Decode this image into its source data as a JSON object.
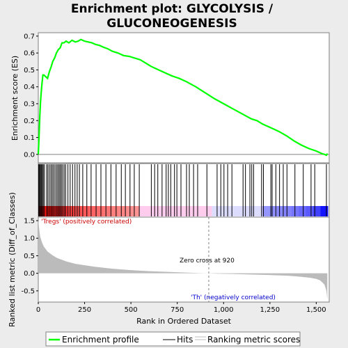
{
  "chart_data": {
    "type": "line",
    "title_line1": "Enrichment plot: GLYCOLYSIS /",
    "title_line2": "GLUCONEOGENESIS",
    "es_ylabel": "Enrichment score (ES)",
    "metric_ylabel": "Ranked list metric (Diff_of_Classes)",
    "xlabel": "Rank in Ordered Dataset",
    "es_yticks": [
      "0.0",
      "0.1",
      "0.2",
      "0.3",
      "0.4",
      "0.5",
      "0.6",
      "0.7"
    ],
    "metric_yticks": [
      "-0.5",
      "0.0",
      "0.5",
      "1.0",
      "1.5"
    ],
    "xticks": [
      "0",
      "250",
      "500",
      "750",
      "1,000",
      "1,250",
      "1,500"
    ],
    "xlim": [
      0,
      1570
    ],
    "es_ylim": [
      -0.05,
      0.72
    ],
    "metric_ylim": [
      -0.82,
      1.6
    ],
    "positive_label": "'Tregs' (positively correlated)",
    "negative_label": "'Th' (negatively correlated)",
    "zero_cross_label": "Zero cross at 920",
    "zero_cross": 920,
    "es_line_color": "#00ff00",
    "hit_color": "#000000",
    "metric_color": "#bbbbbb",
    "series": [
      {
        "name": "Enrichment profile",
        "x": [
          0,
          4,
          8,
          12,
          16,
          20,
          25,
          30,
          40,
          50,
          60,
          70,
          78,
          88,
          98,
          108,
          118,
          128,
          138,
          150,
          165,
          182,
          200,
          215,
          230,
          250,
          270,
          290,
          310,
          330,
          350,
          375,
          400,
          430,
          460,
          490,
          520,
          550,
          580,
          610,
          640,
          680,
          720,
          760,
          800,
          850,
          900,
          950,
          1000,
          1050,
          1100,
          1150,
          1180,
          1210,
          1240,
          1270,
          1300,
          1340,
          1380,
          1420,
          1460,
          1500,
          1530,
          1545,
          1555,
          1560
        ],
        "y": [
          0.0,
          0.1,
          0.22,
          0.31,
          0.37,
          0.42,
          0.47,
          0.47,
          0.46,
          0.45,
          0.49,
          0.52,
          0.55,
          0.57,
          0.6,
          0.62,
          0.63,
          0.66,
          0.66,
          0.67,
          0.66,
          0.675,
          0.665,
          0.67,
          0.68,
          0.67,
          0.665,
          0.66,
          0.65,
          0.645,
          0.635,
          0.625,
          0.61,
          0.6,
          0.585,
          0.58,
          0.57,
          0.56,
          0.54,
          0.52,
          0.505,
          0.485,
          0.465,
          0.45,
          0.43,
          0.4,
          0.365,
          0.33,
          0.3,
          0.27,
          0.24,
          0.21,
          0.2,
          0.18,
          0.165,
          0.15,
          0.135,
          0.11,
          0.08,
          0.055,
          0.035,
          0.02,
          0.005,
          0.0,
          -0.005,
          0.005
        ]
      }
    ],
    "hits": [
      2,
      5,
      9,
      14,
      18,
      22,
      27,
      33,
      45,
      52,
      60,
      68,
      75,
      82,
      90,
      98,
      105,
      112,
      118,
      125,
      132,
      140,
      148,
      160,
      172,
      185,
      198,
      210,
      222,
      240,
      262,
      285,
      312,
      338,
      365,
      392,
      420,
      448,
      470,
      495,
      518,
      545,
      610,
      628,
      645,
      668,
      690,
      702,
      715,
      735,
      748,
      770,
      800,
      815,
      838,
      860,
      910,
      965,
      985,
      1002,
      1022,
      1045,
      1105,
      1118,
      1142,
      1152,
      1162,
      1205,
      1215,
      1255,
      1262,
      1282,
      1302,
      1322,
      1342,
      1385,
      1430,
      1472,
      1492,
      1555
    ],
    "metric_points": {
      "x": [
        0,
        5,
        10,
        20,
        30,
        50,
        75,
        100,
        150,
        200,
        300,
        400,
        500,
        600,
        700,
        800,
        880,
        920,
        960,
        1050,
        1150,
        1250,
        1350,
        1420,
        1470,
        1500,
        1520,
        1535,
        1545,
        1555,
        1560
      ],
      "y": [
        1.55,
        1.25,
        1.05,
        0.88,
        0.76,
        0.62,
        0.52,
        0.44,
        0.34,
        0.27,
        0.19,
        0.13,
        0.09,
        0.06,
        0.04,
        0.02,
        0.005,
        0.0,
        -0.01,
        -0.02,
        -0.035,
        -0.05,
        -0.07,
        -0.1,
        -0.13,
        -0.16,
        -0.2,
        -0.27,
        -0.33,
        -0.5,
        -0.75
      ]
    },
    "legend": [
      {
        "name": "Enrichment profile",
        "color": "#00ff00"
      },
      {
        "name": "Hits",
        "color": "#000000"
      },
      {
        "name": "Ranking metric scores",
        "color": "#bbbbbb"
      }
    ]
  }
}
